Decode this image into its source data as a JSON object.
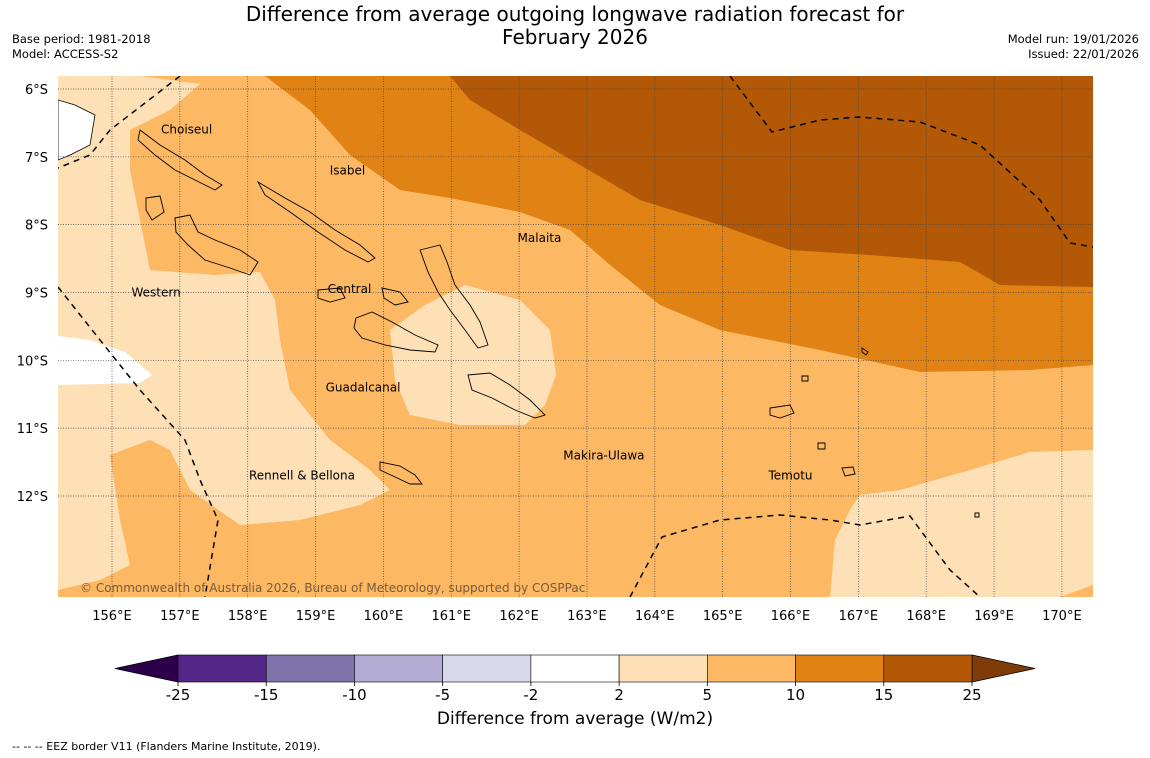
{
  "title_line1": "Difference from average outgoing longwave radiation forecast for",
  "title_line2": "February 2026",
  "meta_left": [
    "Base period: 1981-2018",
    "Model: ACCESS-S2"
  ],
  "meta_right": [
    "Model run: 19/01/2026",
    "Issued: 22/01/2026"
  ],
  "lat_labels": [
    "6°S",
    "7°S",
    "8°S",
    "9°S",
    "10°S",
    "11°S",
    "12°S"
  ],
  "lat_values": [
    6,
    7,
    8,
    9,
    10,
    11,
    12
  ],
  "lon_labels": [
    "156°E",
    "157°E",
    "158°E",
    "159°E",
    "160°E",
    "161°E",
    "162°E",
    "163°E",
    "164°E",
    "165°E",
    "166°E",
    "167°E",
    "168°E",
    "169°E",
    "170°E"
  ],
  "lon_values": [
    156,
    157,
    158,
    159,
    160,
    161,
    162,
    163,
    164,
    165,
    166,
    167,
    168,
    169,
    170
  ],
  "provinces": [
    {
      "name": "Choiseul",
      "lon": 157.1,
      "lat": 6.6
    },
    {
      "name": "Isabel",
      "lon": 159.47,
      "lat": 7.2
    },
    {
      "name": "Malaita",
      "lon": 162.3,
      "lat": 8.2
    },
    {
      "name": "Western",
      "lon": 156.65,
      "lat": 9.0
    },
    {
      "name": "Central",
      "lon": 159.5,
      "lat": 8.95
    },
    {
      "name": "Guadalcanal",
      "lon": 159.7,
      "lat": 10.4
    },
    {
      "name": "Makira-Ulawa",
      "lon": 163.25,
      "lat": 11.4
    },
    {
      "name": "Rennell & Bellona",
      "lon": 158.8,
      "lat": 11.7
    },
    {
      "name": "Temotu",
      "lon": 166.0,
      "lat": 11.7
    }
  ],
  "copyright": "© Commonwealth of Australia 2026, Bureau of Meteorology, supported by COSPPac",
  "colorbar": {
    "ticks": [
      "-25",
      "-15",
      "-10",
      "-5",
      "-2",
      "2",
      "5",
      "10",
      "15",
      "25"
    ],
    "colors": [
      "#542788",
      "#8073ac",
      "#b2abd2",
      "#d8daeb",
      "#ffffff",
      "#fee0b6",
      "#fdb863",
      "#e08214",
      "#b35806"
    ],
    "under_color": "#2d004b",
    "over_color": "#7f3b08",
    "label": "Difference from average (W/m2)"
  },
  "footer": "--  --  -- EEZ border V11 (Flanders Marine Institute, 2019)."
}
